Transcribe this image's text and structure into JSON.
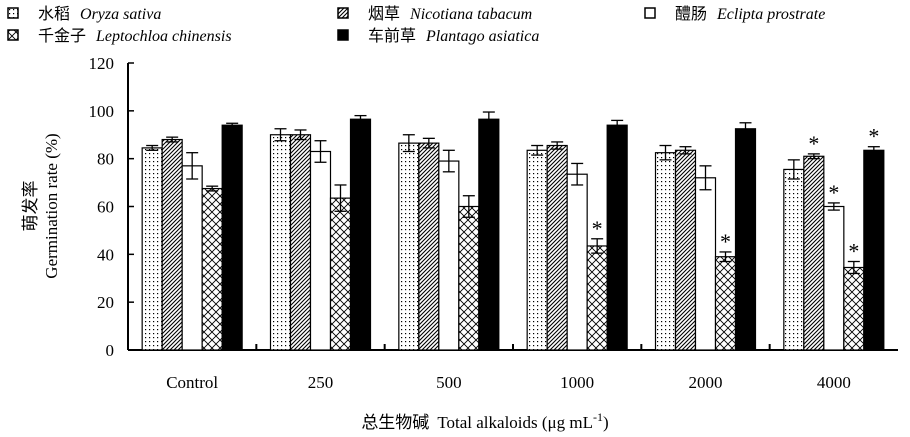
{
  "chart_data": {
    "type": "bar",
    "categories": [
      "Control",
      "250",
      "500",
      "1000",
      "2000",
      "4000"
    ],
    "xlabel_zh": "总生物碱",
    "xlabel_en": "Total alkaloids (μg mL",
    "xlabel_sup": "-1",
    "xlabel_close": ")",
    "ylabel_zh": "萌发率",
    "ylabel_en": "Germination rate (%)",
    "ylim": [
      0,
      120
    ],
    "yticks": [
      0,
      20,
      40,
      60,
      80,
      100,
      120
    ],
    "significance_marker": "*",
    "series": [
      {
        "name_zh": "水稻",
        "name_sci": "Oryza sativa",
        "pattern": "dots",
        "values": [
          84.5,
          90.0,
          86.5,
          83.5,
          82.5,
          75.5
        ],
        "errors": [
          1.0,
          2.5,
          3.5,
          2.0,
          3.0,
          4.0
        ],
        "significant": [
          false,
          false,
          false,
          false,
          false,
          false
        ]
      },
      {
        "name_zh": "烟草",
        "name_sci": "Nicotiana tabacum",
        "pattern": "diag-dense",
        "values": [
          88.0,
          90.0,
          86.5,
          85.5,
          83.5,
          81.0
        ],
        "errors": [
          1.0,
          2.0,
          2.0,
          1.5,
          1.5,
          1.0
        ],
        "significant": [
          false,
          false,
          false,
          false,
          false,
          true
        ]
      },
      {
        "name_zh": "醴肠",
        "name_sci": "Eclipta prostrate",
        "pattern": "white",
        "values": [
          77.0,
          83.0,
          79.0,
          73.5,
          72.0,
          60.0
        ],
        "errors": [
          5.5,
          4.5,
          4.5,
          4.5,
          5.0,
          1.5
        ],
        "significant": [
          false,
          false,
          false,
          false,
          false,
          true
        ]
      },
      {
        "name_zh": "千金子",
        "name_sci": "Leptochloa chinensis",
        "pattern": "cross",
        "values": [
          67.5,
          63.5,
          60.0,
          43.5,
          39.0,
          34.5
        ],
        "errors": [
          1.0,
          5.5,
          4.5,
          3.0,
          2.0,
          2.5
        ],
        "significant": [
          false,
          false,
          false,
          true,
          true,
          true
        ]
      },
      {
        "name_zh": "车前草",
        "name_sci": "Plantago asiatica",
        "pattern": "black",
        "values": [
          94.0,
          96.5,
          96.5,
          94.0,
          92.5,
          83.5
        ],
        "errors": [
          0.8,
          1.5,
          3.0,
          2.0,
          2.5,
          1.5
        ],
        "significant": [
          false,
          false,
          false,
          false,
          false,
          true
        ]
      }
    ],
    "legend": [
      {
        "series": 0,
        "row": 0,
        "col": 0
      },
      {
        "series": 1,
        "row": 0,
        "col": 1
      },
      {
        "series": 2,
        "row": 0,
        "col": 2
      },
      {
        "series": 3,
        "row": 1,
        "col": 0
      },
      {
        "series": 4,
        "row": 1,
        "col": 1
      }
    ]
  }
}
